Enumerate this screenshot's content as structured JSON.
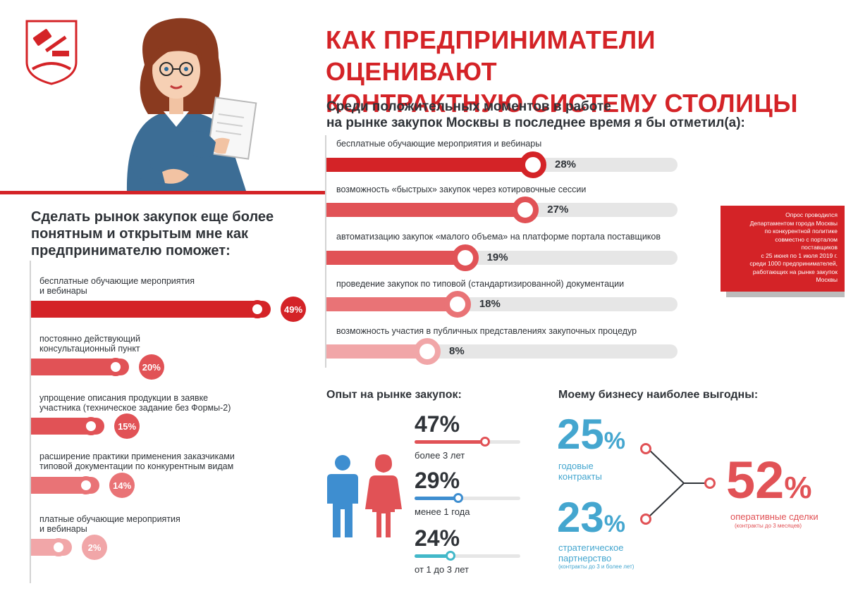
{
  "title": {
    "line1": "КАК ПРЕДПРИНИМАТЕЛИ ОЦЕНИВАЮТ",
    "line2": "КОНТРАКТНУЮ СИСТЕМУ СТОЛИЦЫ"
  },
  "left_section": {
    "heading_line1": "Сделать рынок закупок еще более",
    "heading_line2": "понятным и открытым мне как",
    "heading_line3": "предпринимателю поможет:"
  },
  "right_section": {
    "heading_line1": "Среди положительных моментов в работе",
    "heading_line2": "на рынке закупок Москвы в последнее время я бы отметил(а):"
  },
  "note": {
    "l1": "Опрос проводился",
    "l2": "Департаментом города Москвы",
    "l3": "по конкурентной политике",
    "l4": "совместно с порталом",
    "l5": "поставщиков",
    "l6": "с 25 июня по 1 июля 2019 г.",
    "l7": "среди 1000 предпринимателей,",
    "l8": "работающих на рынке закупок",
    "l9": "Москвы"
  },
  "experience": {
    "heading": "Опыт на рынке закупок:",
    "items": [
      {
        "pct": "47%",
        "label": "более 3 лет",
        "value": 47,
        "color": "#e15256"
      },
      {
        "pct": "29%",
        "label": "менее 1 года",
        "value": 29,
        "color": "#3e8ed0"
      },
      {
        "pct": "24%",
        "label": "от 1 до 3 лет",
        "value": 24,
        "color": "#42b8c9"
      }
    ]
  },
  "business": {
    "heading": "Моему бизнесу наиболее выгодны:",
    "annual": {
      "num": "25",
      "sign": "%",
      "l1": "годовые",
      "l2": "контракты"
    },
    "strategic": {
      "num": "23",
      "sign": "%",
      "l1": "стратегическое",
      "l2": "партнерство",
      "note": "(контракты до 3 и более лет)"
    },
    "operative": {
      "num": "52",
      "sign": "%",
      "l1": "оперативные сделки",
      "note": "(контракты до 3 месяцев)"
    }
  },
  "chart_data": [
    {
      "type": "bar",
      "title": "Сделать рынок закупок еще более понятным и открытым мне как предпринимателю поможет:",
      "categories": [
        "бесплатные обучающие мероприятия и вебинары",
        "постоянно действующий консультационный пункт",
        "упрощение описания продукции в заявке участника (техническое задание без Формы-2)",
        "расширение практики применения заказчиками типовой документации по конкурентным видам",
        "платные обучающие мероприятия и вебинары"
      ],
      "label_lines": [
        [
          "бесплатные обучающие мероприятия",
          "и вебинары"
        ],
        [
          "постоянно действующий",
          "консультационный пункт"
        ],
        [
          "упрощение описания продукции в заявке",
          "участника (техническое задание без Формы-2)"
        ],
        [
          "расширение практики применения заказчиками",
          "типовой документации по конкурентным видам"
        ],
        [
          "платные обучающие мероприятия",
          "и вебинары"
        ]
      ],
      "values": [
        49,
        20,
        15,
        14,
        2
      ],
      "value_labels": [
        "49%",
        "20%",
        "15%",
        "14%",
        "2%"
      ],
      "unit": "%",
      "colors": [
        "#d42327",
        "#e15256",
        "#e15256",
        "#e97376",
        "#f1a6a8"
      ]
    },
    {
      "type": "bar",
      "title": "Среди положительных моментов в работе на рынке закупок Москвы в последнее время я бы отметил(а):",
      "categories": [
        "бесплатные обучающие мероприятия и вебинары",
        "возможность «быстрых» закупок через котировочные сессии",
        "автоматизацию закупок «малого объема» на платформе портала поставщиков",
        "проведение закупок по типовой (стандартизированной) документации",
        "возможность участия в публичных представлениях закупочных процедур"
      ],
      "values": [
        28,
        27,
        19,
        18,
        8
      ],
      "value_labels": [
        "28%",
        "27%",
        "19%",
        "18%",
        "8%"
      ],
      "unit": "%",
      "colors": [
        "#d42327",
        "#e15256",
        "#e15256",
        "#e97376",
        "#f1a6a8"
      ]
    }
  ]
}
